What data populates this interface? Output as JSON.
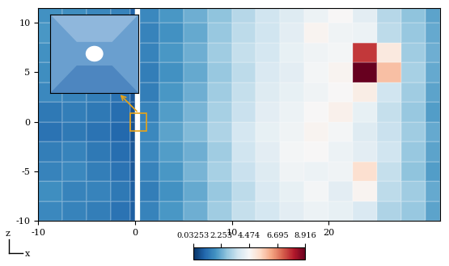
{
  "chart_data": {
    "type": "heatmap",
    "xlabel": "x",
    "ylabel": "z",
    "xlim": [
      -10,
      31.5
    ],
    "ylim": [
      -10,
      11.5
    ],
    "xticks": [
      -10,
      0,
      10,
      20
    ],
    "yticks": [
      -10,
      -5,
      0,
      5,
      10
    ],
    "x_edges": [
      -10,
      -7.5,
      -5,
      -2.5,
      -0.5,
      0,
      0.5,
      2.5,
      5,
      7.5,
      10,
      12.5,
      15,
      17.5,
      20,
      22.5,
      25,
      27.5,
      30,
      31.5
    ],
    "z_edges": [
      -10,
      -8,
      -6,
      -4,
      -2,
      0,
      2,
      4,
      6,
      8,
      10,
      11.5
    ],
    "cells": [
      [
        1.6,
        1.5,
        1.4,
        1.2,
        0.8,
        null,
        1.5,
        1.9,
        2.3,
        2.9,
        3.4,
        3.7,
        4.0,
        4.2,
        4.1,
        3.8,
        3.1,
        2.8,
        2.1
      ],
      [
        1.7,
        1.5,
        1.5,
        1.3,
        0.8,
        null,
        1.4,
        1.8,
        2.2,
        2.8,
        3.3,
        3.8,
        4.1,
        4.4,
        4.0,
        4.6,
        3.3,
        2.9,
        2.2
      ],
      [
        1.5,
        1.6,
        1.4,
        1.2,
        0.7,
        null,
        1.5,
        1.9,
        2.4,
        3.0,
        3.5,
        3.9,
        4.3,
        4.2,
        4.3,
        5.2,
        3.4,
        2.7,
        2.0
      ],
      [
        1.4,
        1.5,
        1.3,
        1.1,
        0.7,
        null,
        1.6,
        2.0,
        2.3,
        2.9,
        3.6,
        4.0,
        4.4,
        4.5,
        4.2,
        4.0,
        3.6,
        2.8,
        2.1
      ],
      [
        1.2,
        1.3,
        1.2,
        1.0,
        0.6,
        null,
        1.6,
        2.1,
        2.5,
        3.1,
        3.7,
        4.1,
        4.3,
        4.6,
        4.4,
        3.9,
        3.5,
        2.9,
        2.2
      ],
      [
        1.3,
        1.4,
        1.3,
        1.1,
        0.6,
        null,
        1.5,
        2.0,
        2.4,
        3.0,
        3.5,
        4.0,
        4.2,
        4.5,
        4.7,
        4.1,
        3.4,
        2.8,
        2.0
      ],
      [
        1.6,
        1.5,
        1.4,
        1.2,
        0.7,
        null,
        1.4,
        1.9,
        2.3,
        2.9,
        3.4,
        3.9,
        4.1,
        4.3,
        4.5,
        4.8,
        3.6,
        2.9,
        2.1
      ],
      [
        1.7,
        1.6,
        1.5,
        1.3,
        0.8,
        null,
        1.4,
        1.8,
        2.2,
        2.8,
        3.3,
        3.8,
        4.0,
        4.4,
        4.6,
        8.9,
        5.8,
        3.0,
        2.2
      ],
      [
        1.8,
        1.7,
        1.6,
        1.4,
        0.8,
        null,
        1.5,
        1.9,
        2.3,
        2.9,
        3.4,
        3.7,
        4.1,
        4.3,
        4.4,
        7.6,
        4.9,
        2.9,
        2.3
      ],
      [
        1.9,
        1.8,
        1.6,
        1.4,
        0.9,
        null,
        1.5,
        1.8,
        2.2,
        2.8,
        3.3,
        3.6,
        4.0,
        4.6,
        4.3,
        4.2,
        3.3,
        2.8,
        2.2
      ],
      [
        1.8,
        1.7,
        1.6,
        1.5,
        0.9,
        null,
        1.6,
        1.9,
        2.3,
        2.7,
        3.2,
        3.6,
        3.9,
        4.2,
        4.5,
        4.0,
        3.2,
        2.7,
        2.1
      ]
    ],
    "colorbar": {
      "range": [
        0.03253,
        8.916
      ],
      "ticks": [
        0.03253,
        2.253,
        4.474,
        6.695,
        8.916
      ]
    }
  }
}
